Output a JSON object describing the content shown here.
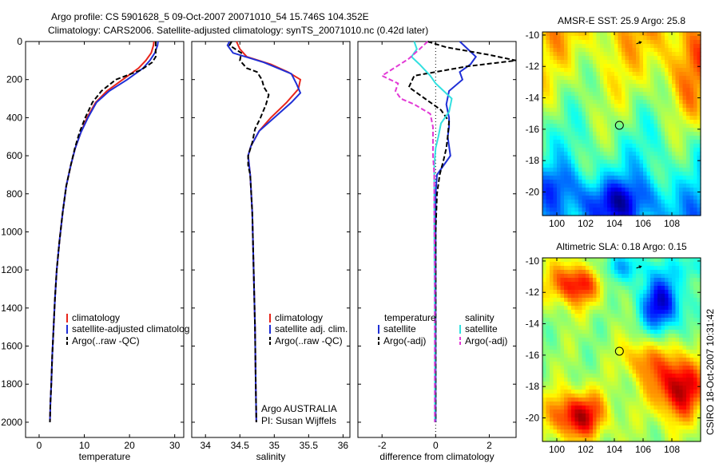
{
  "colors": {
    "red": "#e8251b",
    "blue": "#1f2fd6",
    "black": "#000000",
    "cyan": "#33e0e0",
    "magenta": "#e23ad6"
  },
  "header": {
    "line1": "Argo profile: CS 5901628_5 09-Oct-2007 20071010_54 15.746S 104.352E",
    "line2": "Climatology: CARS2006. Satellite-adjusted climatology: synTS_20071010.nc (0.42d later)"
  },
  "footer_right": "CSIRO 18-Oct-2007 10:31:42",
  "chart_data": [
    {
      "type": "line",
      "name": "temperature",
      "xlabel": "temperature",
      "xlim": [
        -3,
        32
      ],
      "ylim": [
        0,
        2080
      ],
      "xticks": [
        0,
        10,
        20,
        30
      ],
      "yticks": [
        0,
        200,
        400,
        600,
        800,
        1000,
        1200,
        1400,
        1600,
        1800,
        2000
      ],
      "legend": [
        "climatology",
        "satellite-adjusted climatolog",
        "Argo(..raw -QC)"
      ],
      "series": [
        {
          "name": "climatology",
          "color": "red",
          "dash": false,
          "points": [
            [
              25.4,
              0
            ],
            [
              25.3,
              20
            ],
            [
              24.8,
              60
            ],
            [
              23.6,
              100
            ],
            [
              22,
              140
            ],
            [
              18.5,
              200
            ],
            [
              15,
              260
            ],
            [
              12.5,
              320
            ],
            [
              10.6,
              400
            ],
            [
              9.2,
              480
            ],
            [
              8,
              560
            ],
            [
              7,
              650
            ],
            [
              6,
              760
            ],
            [
              5.2,
              900
            ],
            [
              4.5,
              1050
            ],
            [
              3.9,
              1200
            ],
            [
              3.5,
              1350
            ],
            [
              3.2,
              1500
            ],
            [
              2.9,
              1650
            ],
            [
              2.7,
              1800
            ],
            [
              2.5,
              1900
            ],
            [
              2.4,
              2000
            ]
          ]
        },
        {
          "name": "satellite-adjusted climatolog",
          "color": "blue",
          "dash": false,
          "points": [
            [
              26.3,
              0
            ],
            [
              26.2,
              20
            ],
            [
              25.6,
              60
            ],
            [
              24.5,
              100
            ],
            [
              23,
              140
            ],
            [
              19.5,
              200
            ],
            [
              15.5,
              260
            ],
            [
              12.7,
              320
            ],
            [
              10.8,
              400
            ],
            [
              9.2,
              480
            ],
            [
              8,
              560
            ],
            [
              7,
              650
            ],
            [
              6,
              760
            ],
            [
              5.2,
              900
            ],
            [
              4.5,
              1050
            ],
            [
              3.9,
              1200
            ],
            [
              3.5,
              1350
            ],
            [
              3.2,
              1500
            ],
            [
              2.9,
              1650
            ],
            [
              2.7,
              1800
            ],
            [
              2.5,
              1900
            ],
            [
              2.4,
              2000
            ]
          ]
        },
        {
          "name": "Argo(..raw -QC)",
          "color": "black",
          "dash": true,
          "points": [
            [
              25.8,
              0
            ],
            [
              25.8,
              40
            ],
            [
              25.8,
              80
            ],
            [
              25,
              110
            ],
            [
              22.5,
              150
            ],
            [
              17,
              200
            ],
            [
              13.8,
              260
            ],
            [
              11.8,
              320
            ],
            [
              10.2,
              400
            ],
            [
              8.9,
              480
            ],
            [
              7.9,
              560
            ],
            [
              7,
              650
            ],
            [
              6,
              760
            ],
            [
              5.2,
              900
            ],
            [
              4.5,
              1050
            ],
            [
              3.9,
              1200
            ],
            [
              3.5,
              1350
            ],
            [
              3.2,
              1500
            ],
            [
              2.9,
              1650
            ],
            [
              2.7,
              1800
            ],
            [
              2.5,
              1900
            ],
            [
              2.4,
              2000
            ]
          ]
        }
      ]
    },
    {
      "type": "line",
      "name": "salinity",
      "xlabel": "salinity",
      "xlim": [
        33.8,
        36.1
      ],
      "ylim": [
        0,
        2080
      ],
      "xticks": [
        34,
        34.5,
        35,
        35.5,
        36
      ],
      "yticks": [
        0,
        200,
        400,
        600,
        800,
        1000,
        1200,
        1400,
        1600,
        1800,
        2000
      ],
      "legend": [
        "climatology",
        "satellite adj. clim.",
        "Argo(..raw -QC)"
      ],
      "annotation": [
        "Argo AUSTRALIA",
        "PI: Susan Wijffels"
      ],
      "series": [
        {
          "name": "climatology",
          "color": "red",
          "dash": false,
          "points": [
            [
              34.45,
              0
            ],
            [
              34.5,
              40
            ],
            [
              34.6,
              80
            ],
            [
              34.95,
              120
            ],
            [
              35.2,
              160
            ],
            [
              35.38,
              200
            ],
            [
              35.35,
              250
            ],
            [
              35.18,
              320
            ],
            [
              34.95,
              400
            ],
            [
              34.78,
              470
            ],
            [
              34.66,
              550
            ],
            [
              34.62,
              600
            ],
            [
              34.65,
              700
            ],
            [
              34.68,
              900
            ],
            [
              34.7,
              1200
            ],
            [
              34.72,
              1500
            ],
            [
              34.73,
              1800
            ],
            [
              34.74,
              2000
            ]
          ]
        },
        {
          "name": "satellite adj. clim.",
          "color": "blue",
          "dash": false,
          "points": [
            [
              34.35,
              0
            ],
            [
              34.32,
              20
            ],
            [
              34.4,
              60
            ],
            [
              34.85,
              110
            ],
            [
              35.25,
              170
            ],
            [
              35.32,
              220
            ],
            [
              35.38,
              270
            ],
            [
              35.25,
              320
            ],
            [
              35,
              400
            ],
            [
              34.78,
              470
            ],
            [
              34.66,
              550
            ],
            [
              34.62,
              600
            ],
            [
              34.65,
              700
            ],
            [
              34.68,
              900
            ],
            [
              34.7,
              1200
            ],
            [
              34.72,
              1500
            ],
            [
              34.73,
              1800
            ],
            [
              34.74,
              2000
            ]
          ]
        },
        {
          "name": "Argo(..raw -QC)",
          "color": "black",
          "dash": true,
          "points": [
            [
              34.38,
              0
            ],
            [
              34.35,
              20
            ],
            [
              34.52,
              60
            ],
            [
              34.5,
              100
            ],
            [
              34.6,
              140
            ],
            [
              34.75,
              160
            ],
            [
              34.82,
              200
            ],
            [
              34.85,
              240
            ],
            [
              34.92,
              280
            ],
            [
              34.88,
              330
            ],
            [
              34.8,
              400
            ],
            [
              34.72,
              460
            ],
            [
              34.68,
              530
            ],
            [
              34.62,
              600
            ],
            [
              34.62,
              650
            ],
            [
              34.65,
              700
            ],
            [
              34.68,
              900
            ],
            [
              34.7,
              1200
            ],
            [
              34.72,
              1500
            ],
            [
              34.73,
              1800
            ],
            [
              34.74,
              2000
            ]
          ]
        }
      ]
    },
    {
      "type": "line",
      "name": "difference",
      "xlabel": "difference from climatology",
      "xlim": [
        -2.9,
        3.0
      ],
      "ylim": [
        0,
        2080
      ],
      "xticks": [
        -2,
        0,
        2
      ],
      "yticks": [
        0,
        200,
        400,
        600,
        800,
        1000,
        1200,
        1400,
        1600,
        1800,
        2000
      ],
      "legend": {
        "temperature": [
          "temperature",
          "satellite",
          "Argo(-adj)"
        ],
        "salinity": [
          "salinity",
          "satellite",
          "Argo(-adj)"
        ]
      },
      "series": [
        {
          "name": "temperature satellite",
          "color": "blue",
          "dash": false,
          "points": [
            [
              0.9,
              0
            ],
            [
              1.2,
              40
            ],
            [
              1.5,
              80
            ],
            [
              1.3,
              120
            ],
            [
              0.9,
              160
            ],
            [
              1,
              200
            ],
            [
              0.5,
              260
            ],
            [
              0.4,
              330
            ],
            [
              0.5,
              400
            ],
            [
              0.5,
              450
            ],
            [
              0.45,
              500
            ],
            [
              0.5,
              550
            ],
            [
              0.55,
              600
            ],
            [
              0.3,
              650
            ],
            [
              0.05,
              700
            ],
            [
              0,
              800
            ],
            [
              0,
              1000
            ],
            [
              0,
              1500
            ],
            [
              0,
              2000
            ]
          ]
        },
        {
          "name": "temperature Argo(-adj)",
          "color": "black",
          "dash": true,
          "points": [
            [
              -0.3,
              0
            ],
            [
              0.4,
              30
            ],
            [
              2,
              70
            ],
            [
              3.0,
              100
            ],
            [
              1.2,
              130
            ],
            [
              -0.8,
              180
            ],
            [
              -1,
              240
            ],
            [
              -0.4,
              300
            ],
            [
              0.2,
              360
            ],
            [
              0.5,
              420
            ],
            [
              0.45,
              500
            ],
            [
              0.4,
              560
            ],
            [
              0.3,
              620
            ],
            [
              0.15,
              700
            ],
            [
              0.05,
              800
            ],
            [
              0,
              1000
            ],
            [
              0,
              1500
            ],
            [
              0,
              2000
            ]
          ]
        },
        {
          "name": "salinity satellite",
          "color": "cyan",
          "dash": false,
          "points": [
            [
              -0.8,
              0
            ],
            [
              -0.7,
              40
            ],
            [
              -0.9,
              80
            ],
            [
              -0.6,
              120
            ],
            [
              -0.2,
              180
            ],
            [
              0,
              220
            ],
            [
              0.6,
              300
            ],
            [
              0.5,
              370
            ],
            [
              0.2,
              430
            ],
            [
              0.1,
              500
            ],
            [
              0,
              560
            ],
            [
              -0.05,
              650
            ],
            [
              -0.05,
              800
            ],
            [
              -0.05,
              1000
            ],
            [
              -0.03,
              1500
            ],
            [
              -0.03,
              2000
            ]
          ]
        },
        {
          "name": "salinity Argo(-adj)",
          "color": "magenta",
          "dash": true,
          "points": [
            [
              -0.3,
              0
            ],
            [
              -0.6,
              40
            ],
            [
              -1.0,
              90
            ],
            [
              -2.0,
              180
            ],
            [
              -1.4,
              220
            ],
            [
              -1.5,
              260
            ],
            [
              -1.3,
              300
            ],
            [
              -0.8,
              330
            ],
            [
              -0.2,
              380
            ],
            [
              -0.1,
              450
            ],
            [
              -0.1,
              520
            ],
            [
              -0.1,
              600
            ],
            [
              -0.05,
              700
            ],
            [
              -0.05,
              900
            ],
            [
              -0.03,
              1200
            ],
            [
              -0.03,
              1500
            ],
            [
              -0.03,
              2000
            ]
          ]
        }
      ]
    },
    {
      "type": "heatmap",
      "name": "sst-map",
      "title": "AMSR-E SST: 25.9 Argo: 25.8",
      "xlim": [
        99,
        110
      ],
      "ylim": [
        -21.5,
        -9.8
      ],
      "xticks": [
        100,
        102,
        104,
        106,
        108
      ],
      "yticks": [
        -10,
        -12,
        -14,
        -16,
        -18,
        -20
      ],
      "marker": [
        104.35,
        -15.75
      ],
      "arrow": [
        105.7,
        -10.5
      ]
    },
    {
      "type": "heatmap",
      "name": "sla-map",
      "title": "Altimetric SLA: 0.18 Argo: 0.15",
      "xlim": [
        99,
        110
      ],
      "ylim": [
        -21.5,
        -9.8
      ],
      "xticks": [
        100,
        102,
        104,
        106,
        108
      ],
      "yticks": [
        -10,
        -12,
        -14,
        -16,
        -18,
        -20
      ],
      "marker": [
        104.35,
        -15.75
      ],
      "arrow": [
        105.7,
        -10.4
      ]
    }
  ]
}
